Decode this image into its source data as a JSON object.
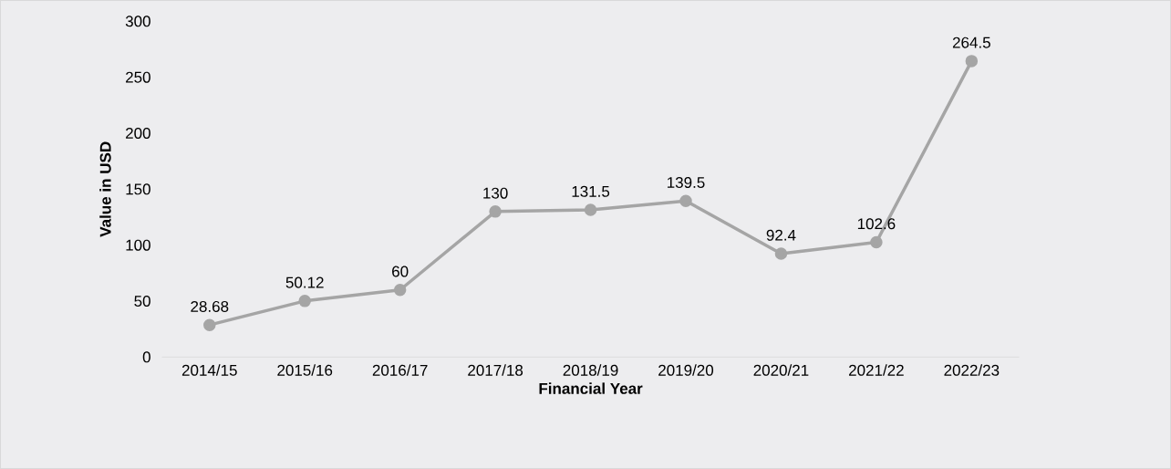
{
  "chart_data": {
    "type": "line",
    "xlabel": "Financial Year",
    "ylabel": "Value in USD",
    "categories": [
      "2014/15",
      "2015/16",
      "2016/17",
      "2017/18",
      "2018/19",
      "2019/20",
      "2020/21",
      "2021/22",
      "2022/23"
    ],
    "values": [
      28.68,
      50.12,
      60,
      130,
      131.5,
      139.5,
      92.4,
      102.6,
      264.5
    ],
    "color": "#a5a5a5",
    "marker": "circle",
    "line_style": "solid",
    "data_labels": true,
    "ylim": [
      0,
      300
    ],
    "yticks": [
      0,
      50,
      100,
      150,
      200,
      250,
      300
    ]
  }
}
